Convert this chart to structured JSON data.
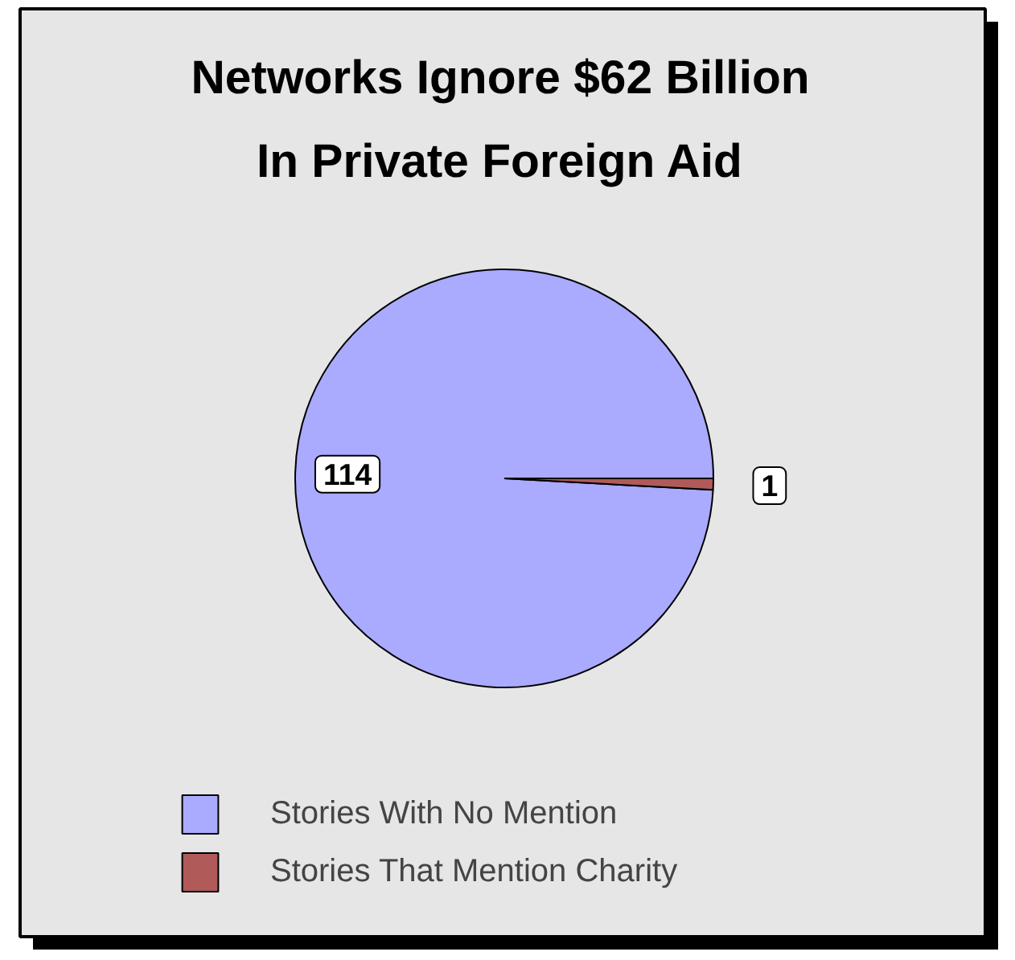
{
  "chart_data": {
    "type": "pie",
    "title": "Networks Ignore $62 Billion In Private Foreign Aid",
    "categories": [
      "Stories With No Mention",
      "Stories That Mention Charity"
    ],
    "values": [
      114,
      1
    ],
    "colors": [
      "#aaaaff",
      "#b05a5a"
    ],
    "data_labels": true,
    "legend": "bottom"
  }
}
